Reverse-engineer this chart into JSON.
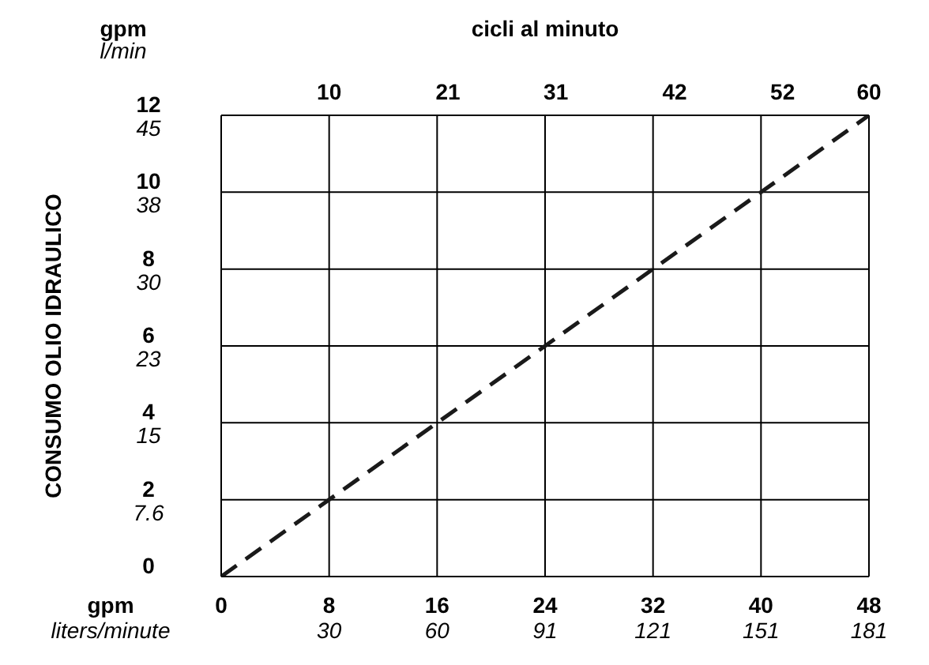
{
  "chart_data": {
    "type": "line",
    "x2label": "cicli al minuto",
    "xlabel": "gpm",
    "annotations": [
      "CONSUMO OLIO IDRAULICO",
      "gpm",
      "l/min",
      "liters/minute",
      "30",
      "60",
      "91",
      "121",
      "151",
      "181"
    ],
    "x": [
      0,
      48
    ],
    "series": [
      {
        "color": "#1a1a1a",
        "values": [
          0,
          12
        ],
        "line_style": "dashed",
        "marker": "none"
      }
    ],
    "xlim": [
      0,
      48
    ],
    "xticks": [
      0,
      8,
      16,
      24,
      32,
      40,
      48
    ],
    "x2lim": [
      0,
      60
    ],
    "x2ticks": [
      10,
      21,
      31,
      42,
      52,
      60
    ],
    "ylim": [
      0,
      12
    ],
    "yticks": [
      0,
      2,
      4,
      6,
      8,
      10,
      12
    ],
    "y2lim": [
      0,
      45.42
    ],
    "y2ticks": [
      {
        "value": 7.57,
        "label": "7.6"
      },
      {
        "value": 15.14,
        "label": "15"
      },
      {
        "value": 22.71,
        "label": "23"
      },
      {
        "value": 30.28,
        "label": "30"
      },
      {
        "value": 37.85,
        "label": "38"
      },
      {
        "value": 45.42,
        "label": "45"
      }
    ],
    "grid": true
  }
}
